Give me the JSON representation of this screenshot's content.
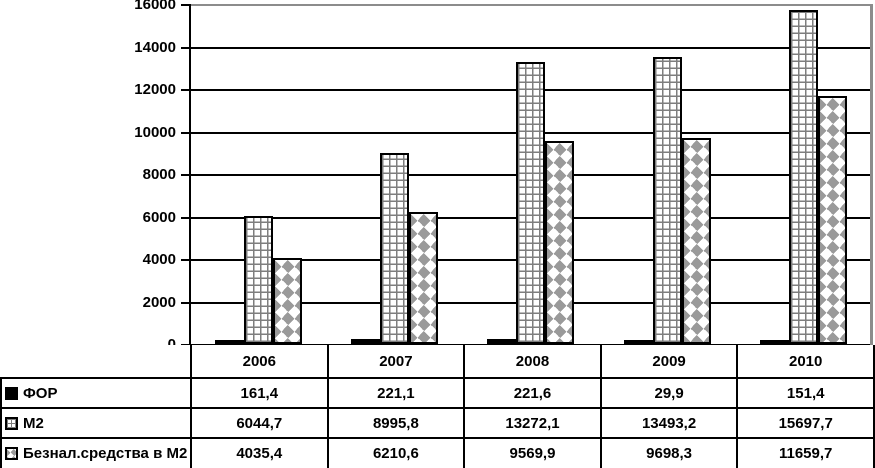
{
  "chart_data": {
    "type": "bar",
    "title": "",
    "categories": [
      "2006",
      "2007",
      "2008",
      "2009",
      "2010"
    ],
    "series": [
      {
        "name": "ФОР",
        "pattern": "solid-black",
        "values": [
          161.4,
          221.1,
          221.6,
          29.9,
          151.4
        ]
      },
      {
        "name": "М2",
        "pattern": "gray-grid",
        "values": [
          6044.7,
          8995.8,
          13272.1,
          13493.2,
          15697.7
        ]
      },
      {
        "name": "Безнал.средства в М2",
        "pattern": "gray-diamond",
        "values": [
          4035.4,
          6210.6,
          9569.9,
          9698.3,
          11659.7
        ]
      }
    ],
    "ylim": [
      0,
      16000
    ],
    "yticks": [
      0,
      2000,
      4000,
      6000,
      8000,
      10000,
      12000,
      14000,
      16000
    ],
    "grid": "horizontal",
    "legend_position": "data-table-left-column",
    "data_table_shown": true,
    "decimal_separator": ",",
    "colors": {
      "bar_border": "#000000",
      "gridline": "#000000",
      "chart_border_gray": "#8c8c8c",
      "pattern_gray": "#9a9a9a",
      "text": "#000000",
      "background": "#ffffff"
    }
  }
}
